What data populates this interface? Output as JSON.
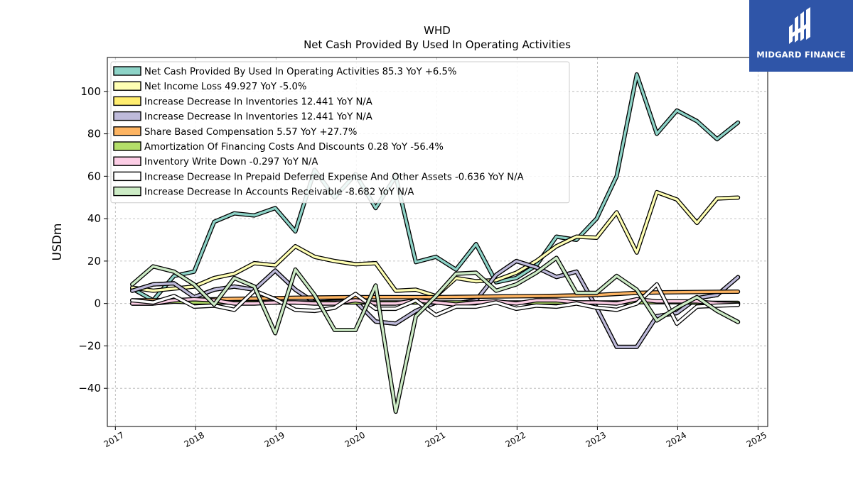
{
  "brand": {
    "name": "MIDGARD FINANCE",
    "color": "#2f55a8"
  },
  "chart_data": {
    "type": "line",
    "title": "WHD",
    "subtitle": "Net Cash Provided By Used In Operating Activities",
    "ylabel": "USDm",
    "xlabel": "",
    "xlim": [
      2016.9,
      2025.12
    ],
    "ylim": [
      -58,
      116
    ],
    "grid": true,
    "legend_position": "top-left",
    "x_ticks": [
      2017,
      2018,
      2019,
      2020,
      2021,
      2022,
      2023,
      2024,
      2025
    ],
    "x_tick_labels": [
      "2017",
      "2018",
      "2019",
      "2020",
      "2021",
      "2022",
      "2023",
      "2024",
      "2025"
    ],
    "y_ticks": [
      -40,
      -20,
      0,
      20,
      40,
      60,
      80,
      100
    ],
    "y_tick_labels": [
      "−40",
      "−20",
      "0",
      "20",
      "40",
      "60",
      "80",
      "100"
    ],
    "x": [
      2017.21,
      2017.47,
      2017.73,
      2017.98,
      2018.23,
      2018.48,
      2018.73,
      2018.99,
      2019.24,
      2019.48,
      2019.73,
      2019.99,
      2020.24,
      2020.49,
      2020.74,
      2020.99,
      2021.24,
      2021.49,
      2021.74,
      2021.99,
      2022.24,
      2022.49,
      2022.74,
      2022.99,
      2023.24,
      2023.49,
      2023.74,
      2023.99,
      2024.24,
      2024.49,
      2024.75
    ],
    "series": [
      {
        "name": "Net Cash Provided By Used In Operating Activities",
        "legend": "Net Cash Provided By Used In Operating Activities  85.3 YoY +6.5%",
        "color": "#8dd3c7",
        "values": [
          7,
          1.5,
          13,
          15,
          38.5,
          42.5,
          41.5,
          45,
          34,
          63,
          50,
          61,
          45,
          60,
          19.5,
          22,
          16,
          28,
          10,
          12,
          18,
          31.5,
          30,
          40,
          60,
          108,
          80,
          91,
          86,
          77.5,
          85.3
        ]
      },
      {
        "name": "Net Income Loss",
        "legend": "Net Income Loss  49.927 YoY -5.0%",
        "color": "#ffffb3",
        "values": [
          7.5,
          6,
          7,
          8,
          12,
          14,
          19,
          18,
          27,
          22,
          20,
          18.5,
          19,
          6,
          6.5,
          3.5,
          12,
          10.5,
          11,
          14.5,
          20,
          27,
          31.5,
          31,
          43,
          24,
          52.5,
          49,
          38,
          49.5,
          49.9
        ]
      },
      {
        "name": "Increase Decrease In Inventories",
        "legend": "Increase Decrease In Inventories  12.441 YoY N/A",
        "color": "#ffed6f",
        "values": [
          6,
          9,
          9.5,
          3,
          6.5,
          8,
          6.5,
          15.5,
          6.5,
          0.5,
          1,
          1,
          -8.5,
          -9.5,
          -3.5,
          0.5,
          0,
          1.5,
          13.5,
          20,
          17,
          12.5,
          15,
          -2,
          -20.5,
          -20.5,
          -6,
          -4.5,
          2.5,
          4,
          12.4
        ]
      },
      {
        "name": "Increase Decrease In Inventories",
        "legend": "Increase Decrease In Inventories  12.441 YoY N/A",
        "color": "#bebada",
        "values": [
          6,
          9,
          9.5,
          3,
          6.5,
          8,
          6.5,
          15.5,
          6.5,
          0.5,
          1,
          1,
          -8.5,
          -9.5,
          -3.5,
          0.5,
          0,
          1.5,
          13.5,
          20,
          17,
          12.5,
          15,
          -2,
          -20.5,
          -20.5,
          -6,
          -4.5,
          2.5,
          4,
          12.4
        ]
      },
      {
        "name": "Share Based Compensation",
        "legend": "Share Based Compensation  5.57 YoY +27.7%",
        "color": "#fdb462",
        "values": [
          1.5,
          1.5,
          1.7,
          1.8,
          2,
          2.2,
          2.3,
          2.5,
          2.7,
          2.8,
          2.9,
          3,
          3,
          3,
          3,
          3,
          3.1,
          3.2,
          3.3,
          3.4,
          3.5,
          3.6,
          3.8,
          4,
          4.5,
          5,
          5.2,
          5.3,
          5.4,
          5.5,
          5.57
        ]
      },
      {
        "name": "Amortization Of Financing Costs And Discounts",
        "legend": "Amortization Of Financing Costs And Discounts  0.28 YoY -56.4%",
        "color": "#b3de69",
        "values": [
          0,
          0,
          0.9,
          0.5,
          0.5,
          0.5,
          0.5,
          0.5,
          0.5,
          0.5,
          0.5,
          0.5,
          0.5,
          0.5,
          0.5,
          0.5,
          0.5,
          0.5,
          0.5,
          0.5,
          0.5,
          0.5,
          0.5,
          0.5,
          0.5,
          0.6,
          0.6,
          0.6,
          0.4,
          0.3,
          0.28
        ]
      },
      {
        "name": "Inventory Write Down",
        "legend": "Inventory Write Down  -0.297 YoY N/A",
        "color": "#fccde5",
        "values": [
          0,
          0,
          1.5,
          2,
          1.5,
          0,
          0,
          0.5,
          0.5,
          0,
          0,
          1.5,
          0,
          0,
          1.5,
          0.5,
          -0.5,
          0.5,
          1,
          0,
          1.5,
          1.5,
          0.5,
          0.5,
          0,
          2,
          1,
          1,
          1,
          0,
          -0.3
        ]
      },
      {
        "name": "Increase Decrease In Prepaid Deferred Expense And Other Assets",
        "legend": "Increase Decrease In Prepaid Deferred Expense And Other Assets  -0.636 YoY N/A",
        "color": "#ffffff",
        "values": [
          1.5,
          0.5,
          3.5,
          -1.5,
          -1,
          -3,
          6,
          2,
          -3,
          -3.5,
          -2,
          4.5,
          -2.5,
          -2.5,
          1.5,
          -5.5,
          -1.5,
          -1.5,
          0.5,
          -2.5,
          -1,
          -1.5,
          0,
          -2,
          -3,
          0,
          9,
          -9.5,
          -1.5,
          -1,
          -0.64
        ]
      },
      {
        "name": "Increase Decrease In Accounts Receivable",
        "legend": "Increase Decrease In Accounts Receivable  -8.682 YoY N/A",
        "color": "#ccebc5",
        "values": [
          9,
          17.5,
          15,
          9,
          -0.5,
          12,
          8,
          -14,
          16,
          4,
          -12.5,
          -12.5,
          8.5,
          -51,
          -6,
          3.5,
          14,
          14.5,
          6,
          9,
          14.5,
          21.5,
          5,
          5,
          13,
          6.5,
          -8,
          -2,
          3,
          -3.5,
          -8.7
        ]
      }
    ]
  }
}
